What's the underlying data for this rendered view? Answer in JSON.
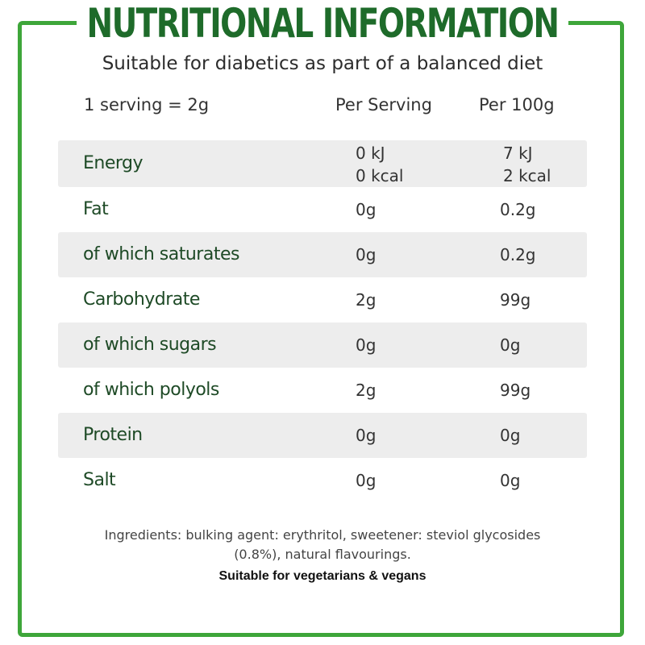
{
  "title": "NUTRITIONAL INFORMATION",
  "subtitle": "Suitable for diabetics as part of a balanced diet",
  "header": {
    "serving_size": "1 serving = 2g",
    "per_serving": "Per Serving",
    "per_100g": "Per 100g"
  },
  "rows": [
    {
      "label": "Energy",
      "per_serving": "0 kJ",
      "per_serving_2": "0 kcal",
      "per_100g": "7 kJ",
      "per_100g_2": "2 kcal"
    },
    {
      "label": "Fat",
      "per_serving": "0g",
      "per_100g": "0.2g"
    },
    {
      "label": "of which saturates",
      "per_serving": "0g",
      "per_100g": "0.2g"
    },
    {
      "label": "Carbohydrate",
      "per_serving": "2g",
      "per_100g": "99g"
    },
    {
      "label": "of which sugars",
      "per_serving": "0g",
      "per_100g": "0g"
    },
    {
      "label": "of which polyols",
      "per_serving": "2g",
      "per_100g": "99g"
    },
    {
      "label": "Protein",
      "per_serving": "0g",
      "per_100g": "0g"
    },
    {
      "label": "Salt",
      "per_serving": "0g",
      "per_100g": "0g"
    }
  ],
  "ingredients": "Ingredients: bulking agent: erythritol, sweetener: steviol glycosides (0.8%), natural flavourings.",
  "suitable": "Suitable for vegetarians & vegans",
  "colors": {
    "border": "#3ea63a",
    "title": "#1e6b2a",
    "row_shade": "#ededed",
    "label_text": "#1e4a26"
  }
}
